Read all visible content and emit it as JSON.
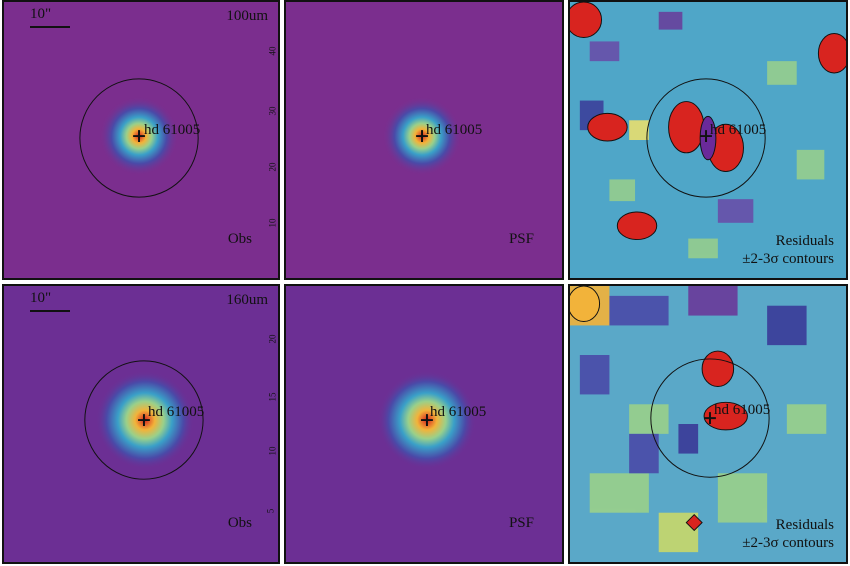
{
  "scale_label": "10\"",
  "source_label": "hd 61005",
  "rows": [
    {
      "band": "100um",
      "panels": [
        {
          "kind": "obs",
          "label": "Obs"
        },
        {
          "kind": "psf",
          "label": "PSF"
        },
        {
          "kind": "residual",
          "label_line1": "Residuals",
          "label_line2": "±2-3σ contours"
        }
      ],
      "y_ticks": [
        "40",
        "30",
        "20",
        "10"
      ]
    },
    {
      "band": "160um",
      "panels": [
        {
          "kind": "obs",
          "label": "Obs"
        },
        {
          "kind": "psf",
          "label": "PSF"
        },
        {
          "kind": "residual",
          "label_line1": "Residuals",
          "label_line2": "±2-3σ contours"
        }
      ],
      "y_ticks": [
        "20",
        "15",
        "10",
        "5"
      ]
    }
  ],
  "colors": {
    "background": "#7a2a8c",
    "peak": "#d8241f",
    "contour": "#111111"
  }
}
